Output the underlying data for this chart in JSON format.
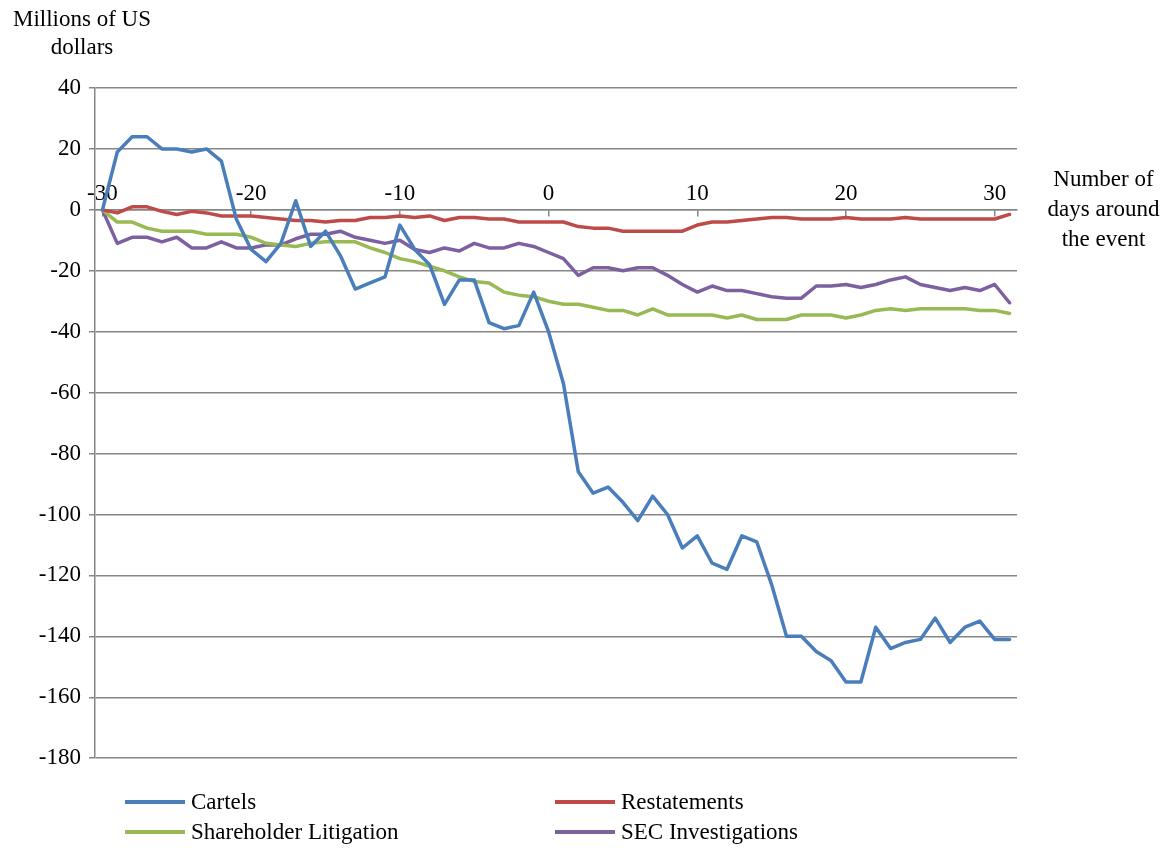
{
  "chart_data": {
    "type": "line",
    "xlabel": "Number of days around the event",
    "ylabel": "Millions of US dollars",
    "x": [
      -30,
      -29,
      -28,
      -27,
      -26,
      -25,
      -24,
      -23,
      -22,
      -21,
      -20,
      -19,
      -18,
      -17,
      -16,
      -15,
      -14,
      -13,
      -12,
      -11,
      -10,
      -9,
      -8,
      -7,
      -6,
      -5,
      -4,
      -3,
      -2,
      -1,
      0,
      1,
      2,
      3,
      4,
      5,
      6,
      7,
      8,
      9,
      10,
      11,
      12,
      13,
      14,
      15,
      16,
      17,
      18,
      19,
      20,
      21,
      22,
      23,
      24,
      25,
      26,
      27,
      28,
      29,
      30,
      31
    ],
    "xlim": [
      -30.5,
      31.5
    ],
    "xticks": [
      -30,
      -20,
      -10,
      0,
      10,
      20,
      30
    ],
    "ylim": [
      -180,
      40
    ],
    "yticks": [
      -180,
      -160,
      -140,
      -120,
      -100,
      -80,
      -60,
      -40,
      -20,
      0,
      20,
      40
    ],
    "grid": "y",
    "legend": "bottom",
    "marker": "none",
    "line_style": "solid",
    "series": [
      {
        "name": "Cartels",
        "color": "#4a7ebb",
        "values": [
          0,
          19,
          24,
          24,
          20,
          20,
          19,
          20,
          16,
          -3,
          -13,
          -17,
          -11,
          3,
          -12,
          -7,
          -15,
          -26,
          -24,
          -22,
          -5,
          -13,
          -18,
          -31,
          -23,
          -23,
          -37,
          -39,
          -38,
          -27,
          -40,
          -57,
          -86,
          -93,
          -91,
          -96,
          -102,
          -94,
          -100,
          -111,
          -107,
          -116,
          -118,
          -107,
          -109,
          -123,
          -140,
          -140,
          -145,
          -148,
          -155,
          -155,
          -137,
          -144,
          -142,
          -141,
          -134,
          -142,
          -137,
          -135,
          -141,
          -141
        ]
      },
      {
        "name": "Restatements",
        "color": "#be4b48",
        "values": [
          0,
          -1,
          1,
          1,
          -0.5,
          -1.5,
          -0.5,
          -1,
          -2,
          -2,
          -2,
          -2.5,
          -3,
          -3.5,
          -3.5,
          -4,
          -3.5,
          -3.5,
          -2.5,
          -2.5,
          -2,
          -2.5,
          -2,
          -3.5,
          -2.5,
          -2.5,
          -3,
          -3,
          -4,
          -4,
          -4,
          -4,
          -5.5,
          -6,
          -6,
          -7,
          -7,
          -7,
          -7,
          -7,
          -5,
          -4,
          -4,
          -3.5,
          -3,
          -2.5,
          -2.5,
          -3,
          -3,
          -3,
          -2.5,
          -3,
          -3,
          -3,
          -2.5,
          -3,
          -3,
          -3,
          -3,
          -3,
          -3,
          -1.5
        ]
      },
      {
        "name": "Shareholder Litigation",
        "color": "#98b954",
        "values": [
          0,
          -4,
          -4,
          -6,
          -7,
          -7,
          -7,
          -8,
          -8,
          -8,
          -9,
          -11,
          -11.5,
          -12,
          -11,
          -10.5,
          -10.5,
          -10.5,
          -12.5,
          -14,
          -16,
          -17,
          -18.5,
          -20,
          -22,
          -23.5,
          -24,
          -27,
          -28,
          -28.5,
          -30,
          -31,
          -31,
          -32,
          -33,
          -33,
          -34.5,
          -32.5,
          -34.5,
          -34.5,
          -34.5,
          -34.5,
          -35.5,
          -34.5,
          -36,
          -36,
          -36,
          -34.5,
          -34.5,
          -34.5,
          -35.5,
          -34.5,
          -33,
          -32.5,
          -33,
          -32.5,
          -32.5,
          -32.5,
          -32.5,
          -33,
          -33,
          -34
        ]
      },
      {
        "name": "SEC Investigations",
        "color": "#7d60a0",
        "values": [
          0,
          -11,
          -9,
          -9,
          -10.5,
          -9,
          -12.5,
          -12.5,
          -10.5,
          -12.5,
          -12.5,
          -11.5,
          -11.5,
          -9.5,
          -8,
          -8,
          -7,
          -9,
          -10,
          -11,
          -10,
          -13,
          -14,
          -12.5,
          -13.5,
          -11,
          -12.5,
          -12.5,
          -11,
          -12,
          -14,
          -16,
          -21.5,
          -19,
          -19,
          -20,
          -19,
          -19,
          -21.5,
          -24.5,
          -27,
          -25,
          -26.5,
          -26.5,
          -27.5,
          -28.5,
          -29,
          -29,
          -25,
          -25,
          -24.5,
          -25.5,
          -24.5,
          -23,
          -22,
          -24.5,
          -25.5,
          -26.5,
          -25.5,
          -26.5,
          -24.5,
          -30.5
        ]
      }
    ]
  }
}
